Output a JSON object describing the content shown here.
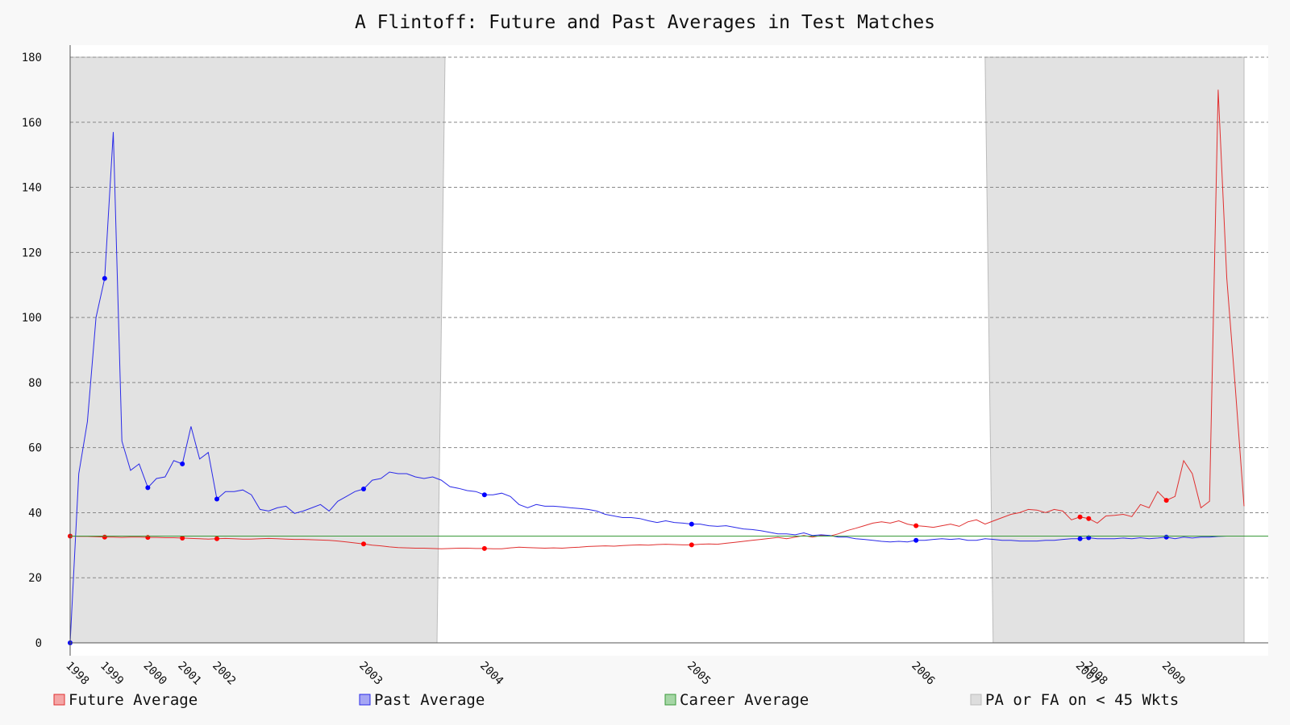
{
  "chart_data": {
    "type": "line",
    "title": "A Flintoff: Future and Past Averages in Test Matches",
    "ylim": [
      0,
      180
    ],
    "yticks": [
      0,
      20,
      40,
      60,
      80,
      100,
      120,
      140,
      160,
      180
    ],
    "grid": true,
    "legend_position": "bottom",
    "x_tick_labels": [
      {
        "label": "1998",
        "match": 0
      },
      {
        "label": "1999",
        "match": 4
      },
      {
        "label": "2000",
        "match": 9
      },
      {
        "label": "2001",
        "match": 13
      },
      {
        "label": "2002",
        "match": 17
      },
      {
        "label": "2003",
        "match": 34
      },
      {
        "label": "2004",
        "match": 48
      },
      {
        "label": "2005",
        "match": 72
      },
      {
        "label": "2006",
        "match": 98
      },
      {
        "label": "2007",
        "match": 117
      },
      {
        "label": "2008",
        "match": 118
      },
      {
        "label": "2009",
        "match": 127
      }
    ],
    "x_range": [
      0,
      136
    ],
    "low_wicket_regions": [
      [
        0,
        42.5
      ],
      [
        106,
        136
      ]
    ],
    "career_average": 32.8,
    "series": [
      {
        "name": "Future Average",
        "color": "#e03030",
        "values": [
          32.8,
          32.7,
          32.7,
          32.6,
          32.5,
          32.5,
          32.4,
          32.5,
          32.5,
          32.4,
          32.4,
          32.3,
          32.3,
          32.2,
          32.1,
          32.0,
          31.9,
          32.0,
          32.1,
          32.0,
          31.9,
          31.9,
          32.0,
          32.1,
          32.0,
          31.9,
          31.8,
          31.8,
          31.7,
          31.6,
          31.5,
          31.3,
          31.0,
          30.7,
          30.4,
          30.0,
          29.8,
          29.5,
          29.3,
          29.2,
          29.1,
          29.1,
          29.0,
          28.9,
          29.0,
          29.1,
          29.1,
          29.0,
          29.0,
          28.9,
          28.9,
          29.2,
          29.4,
          29.3,
          29.2,
          29.1,
          29.2,
          29.1,
          29.3,
          29.4,
          29.6,
          29.7,
          29.8,
          29.7,
          29.9,
          30.0,
          30.1,
          30.0,
          30.2,
          30.3,
          30.2,
          30.1,
          30.1,
          30.3,
          30.4,
          30.3,
          30.6,
          30.9,
          31.2,
          31.5,
          31.8,
          32.1,
          32.4,
          32.0,
          32.5,
          33.0,
          32.5,
          33.0,
          32.8,
          33.5,
          34.5,
          35.2,
          36.0,
          36.8,
          37.2,
          36.8,
          37.5,
          36.5,
          36.0,
          35.8,
          35.5,
          36.0,
          36.5,
          35.8,
          37.2,
          37.8,
          36.5,
          37.5,
          38.5,
          39.5,
          40.0,
          41.0,
          40.8,
          40.0,
          41.0,
          40.5,
          37.8,
          38.7,
          38.2,
          36.8,
          39.0,
          39.2,
          39.5,
          38.8,
          42.5,
          41.5,
          46.5,
          43.8,
          45.0,
          56.0,
          52.0,
          41.5,
          43.5,
          170.0,
          112.0,
          78.0,
          42.0
        ]
      },
      {
        "name": "Past Average",
        "color": "#2a2ae8",
        "values": [
          0,
          52.0,
          68.0,
          100.0,
          112.0,
          157.0,
          62.0,
          53.0,
          55.0,
          47.7,
          50.5,
          51.0,
          56.0,
          55.0,
          66.5,
          56.5,
          58.5,
          44.2,
          46.5,
          46.5,
          47.0,
          45.5,
          41.0,
          40.5,
          41.5,
          42.0,
          39.8,
          40.5,
          41.5,
          42.5,
          40.5,
          43.5,
          45.0,
          46.5,
          47.3,
          50.0,
          50.5,
          52.5,
          52.0,
          52.0,
          51.0,
          50.5,
          51.0,
          50.0,
          48.0,
          47.5,
          46.8,
          46.5,
          45.5,
          45.5,
          46.0,
          45.0,
          42.5,
          41.5,
          42.5,
          42.0,
          42.0,
          41.8,
          41.5,
          41.3,
          41.0,
          40.5,
          39.5,
          39.0,
          38.5,
          38.5,
          38.2,
          37.5,
          37.0,
          37.5,
          37.0,
          36.8,
          36.5,
          36.5,
          36.0,
          35.8,
          36.0,
          35.5,
          35.0,
          34.8,
          34.5,
          34.0,
          33.5,
          33.5,
          33.2,
          33.8,
          33.0,
          33.2,
          33.0,
          32.5,
          32.5,
          32.0,
          31.8,
          31.5,
          31.2,
          31.0,
          31.2,
          31.0,
          31.5,
          31.5,
          31.8,
          32.0,
          31.8,
          32.0,
          31.5,
          31.5,
          32.0,
          31.8,
          31.5,
          31.5,
          31.3,
          31.3,
          31.3,
          31.5,
          31.5,
          31.8,
          32.0,
          32.0,
          32.3,
          32.0,
          32.0,
          32.0,
          32.2,
          32.0,
          32.3,
          32.0,
          32.2,
          32.5,
          32.0,
          32.5,
          32.2,
          32.5,
          32.5,
          32.7,
          32.8
        ]
      },
      {
        "name": "Career Average",
        "color": "#3a9a3a",
        "values": []
      },
      {
        "name": "PA or FA on < 45 Wkts",
        "color": "#dddddd",
        "values": []
      }
    ]
  }
}
